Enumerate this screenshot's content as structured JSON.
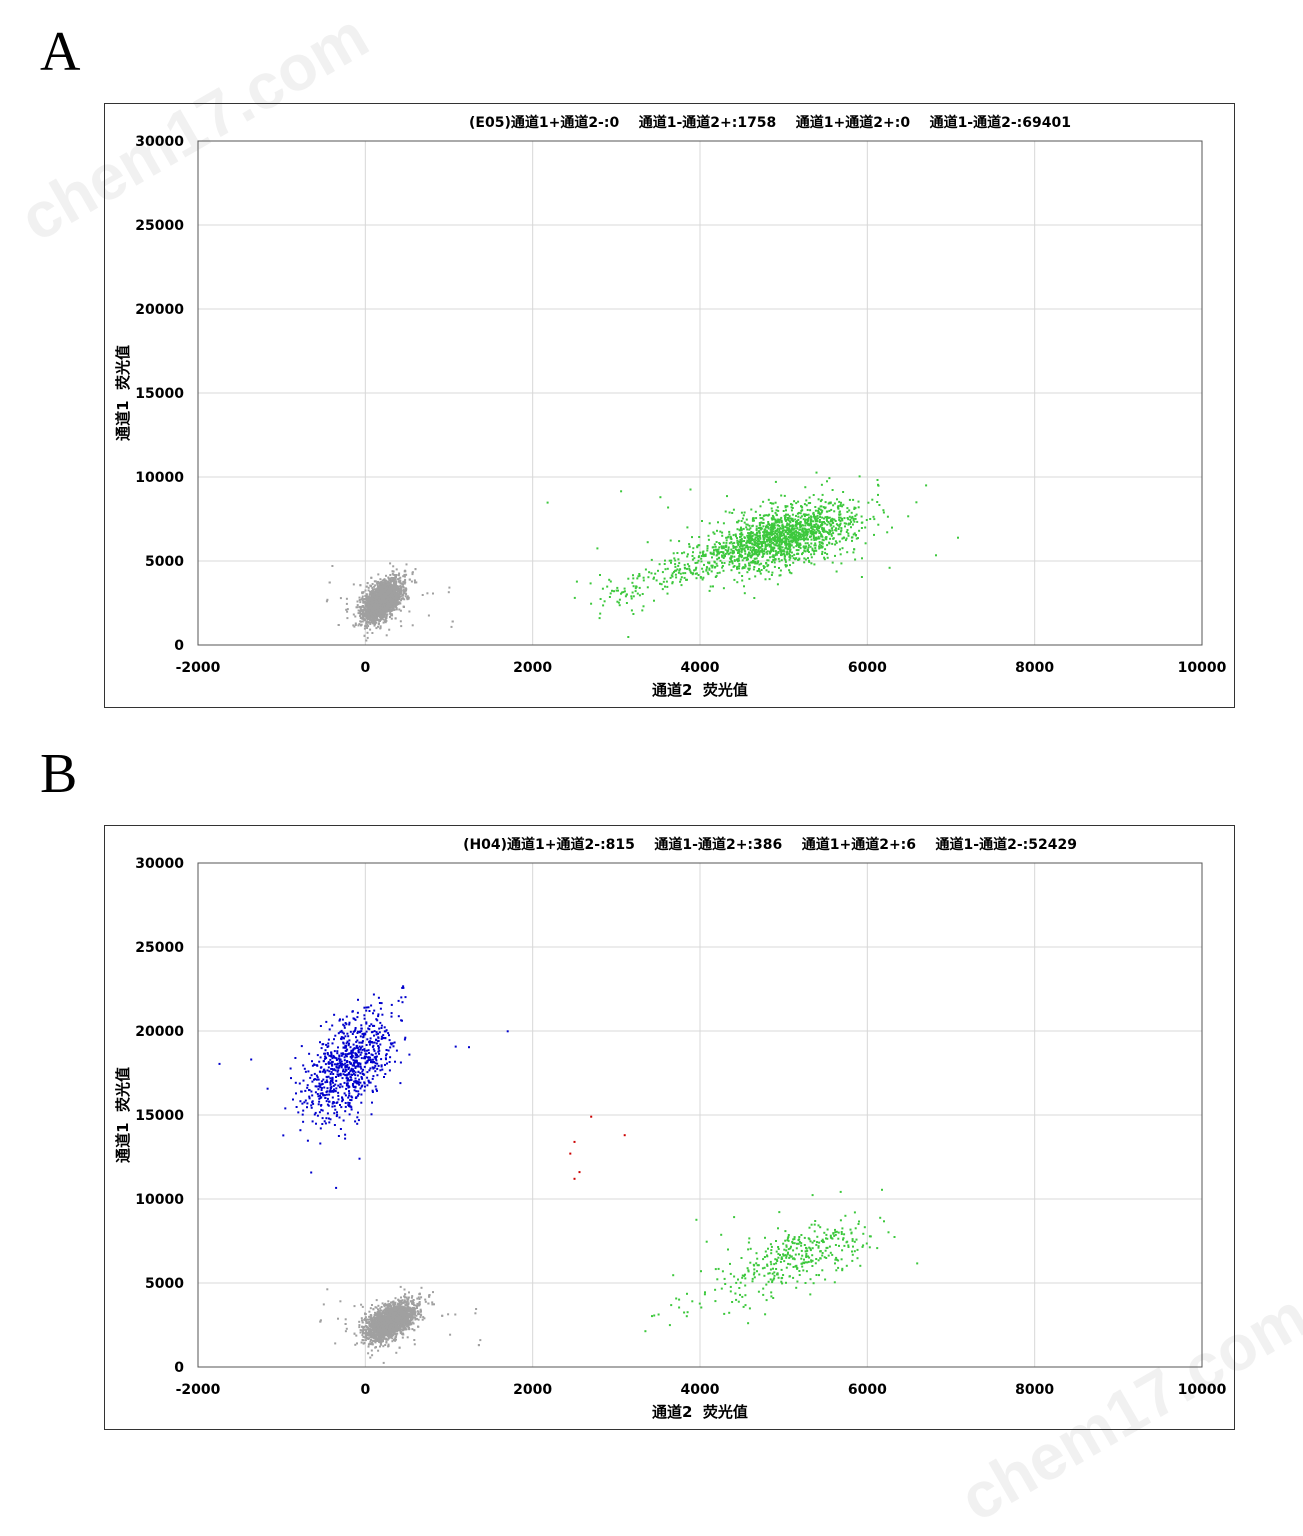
{
  "watermark": "chem17.com",
  "chart_data": [
    {
      "panel_label": "A",
      "type": "scatter",
      "title": "(E05)通道1+通道2-:0    通道1-通道2+:1758    通道1+通道2+:0    通道1-通道2-:69401",
      "xlabel": "通道2  荧光值",
      "ylabel": "通道1  荧光值",
      "xlim": [
        -2000,
        10000
      ],
      "ylim": [
        0,
        30000
      ],
      "xticks": [
        -2000,
        0,
        2000,
        4000,
        6000,
        8000,
        10000
      ],
      "yticks": [
        0,
        5000,
        10000,
        15000,
        20000,
        25000,
        30000
      ],
      "grid": true,
      "clusters": [
        {
          "name": "通道1-通道2+",
          "count": 1758,
          "color": "#3cc83c",
          "center": [
            5000,
            6500
          ],
          "sd": [
            450,
            1000
          ],
          "tail_to": [
            2900,
            2800
          ]
        },
        {
          "name": "通道1-通道2-",
          "count": 69401,
          "color": "#a0a0a0",
          "center": [
            200,
            2600
          ],
          "sd": [
            110,
            600
          ]
        },
        {
          "name": "通道1+通道2-",
          "count": 0,
          "color": "#0000cc"
        },
        {
          "name": "通道1+通道2+",
          "count": 0,
          "color": "#cc0000"
        }
      ]
    },
    {
      "panel_label": "B",
      "type": "scatter",
      "title": "(H04)通道1+通道2-:815    通道1-通道2+:386    通道1+通道2+:6    通道1-通道2-:52429",
      "xlabel": "通道2  荧光值",
      "ylabel": "通道1  荧光值",
      "xlim": [
        -2000,
        10000
      ],
      "ylim": [
        0,
        30000
      ],
      "xticks": [
        -2000,
        0,
        2000,
        4000,
        6000,
        8000,
        10000
      ],
      "yticks": [
        0,
        5000,
        10000,
        15000,
        20000,
        25000,
        30000
      ],
      "grid": true,
      "clusters": [
        {
          "name": "通道1+通道2-",
          "count": 815,
          "color": "#0000cc",
          "center": [
            -200,
            17800
          ],
          "sd": [
            260,
            1600
          ]
        },
        {
          "name": "通道1-通道2+",
          "count": 386,
          "color": "#3cc83c",
          "center": [
            5200,
            6600
          ],
          "sd": [
            400,
            1100
          ],
          "tail_to": [
            3500,
            2800
          ]
        },
        {
          "name": "通道1+通道2+",
          "count": 6,
          "color": "#cc0000",
          "points": [
            [
              2500,
              13400
            ],
            [
              2450,
              12700
            ],
            [
              2560,
              11600
            ],
            [
              2500,
              11200
            ],
            [
              2700,
              14900
            ],
            [
              3100,
              13800
            ]
          ]
        },
        {
          "name": "通道1-通道2-",
          "count": 52429,
          "color": "#a0a0a0",
          "center": [
            300,
            2700
          ],
          "sd": [
            140,
            550
          ]
        }
      ]
    }
  ]
}
